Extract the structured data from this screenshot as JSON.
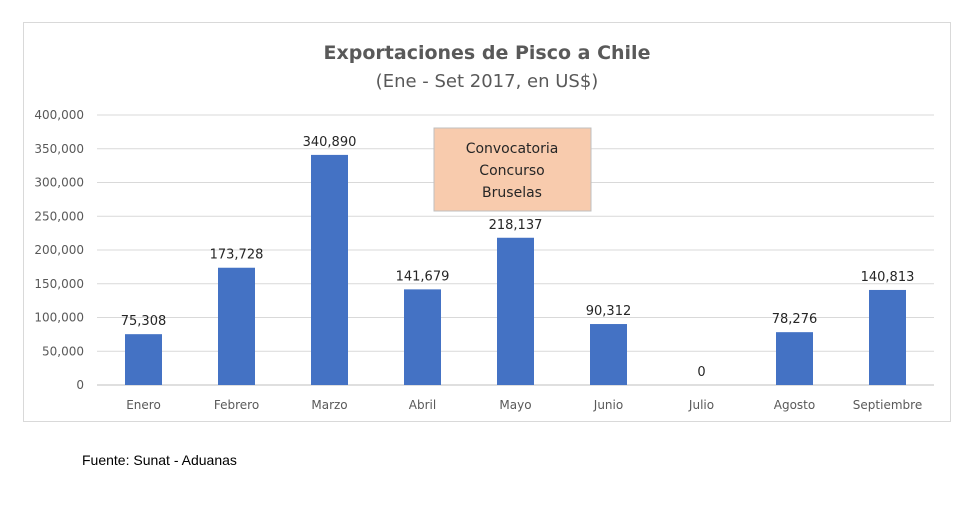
{
  "chart_data": {
    "type": "bar",
    "title": "Exportaciones de Pisco a Chile",
    "subtitle": "(Ene - Set 2017, en US$)",
    "categories": [
      "Enero",
      "Febrero",
      "Marzo",
      "Abril",
      "Mayo",
      "Junio",
      "Julio",
      "Agosto",
      "Septiembre"
    ],
    "values": [
      75308,
      173728,
      340890,
      141679,
      218137,
      90312,
      0,
      78276,
      140813
    ],
    "data_labels": [
      "75,308",
      "173,728",
      "340,890",
      "141,679",
      "218,137",
      "90,312",
      "0",
      "78,276",
      "140,813"
    ],
    "y_ticks": [
      0,
      50000,
      100000,
      150000,
      200000,
      250000,
      300000,
      350000,
      400000
    ],
    "y_tick_labels": [
      "0",
      "50,000",
      "100,000",
      "150,000",
      "200,000",
      "250,000",
      "300,000",
      "350,000",
      "400,000"
    ],
    "ylim": [
      0,
      400000
    ],
    "grid": true,
    "xlabel": "",
    "ylabel": "",
    "bar_color": "#4472C4",
    "annotation": {
      "lines": [
        "Convocatoria",
        "Concurso",
        "Bruselas"
      ],
      "fill": "#F8CBAD",
      "border": "#BFBFBF"
    }
  },
  "source": "Fuente: Sunat - Aduanas"
}
